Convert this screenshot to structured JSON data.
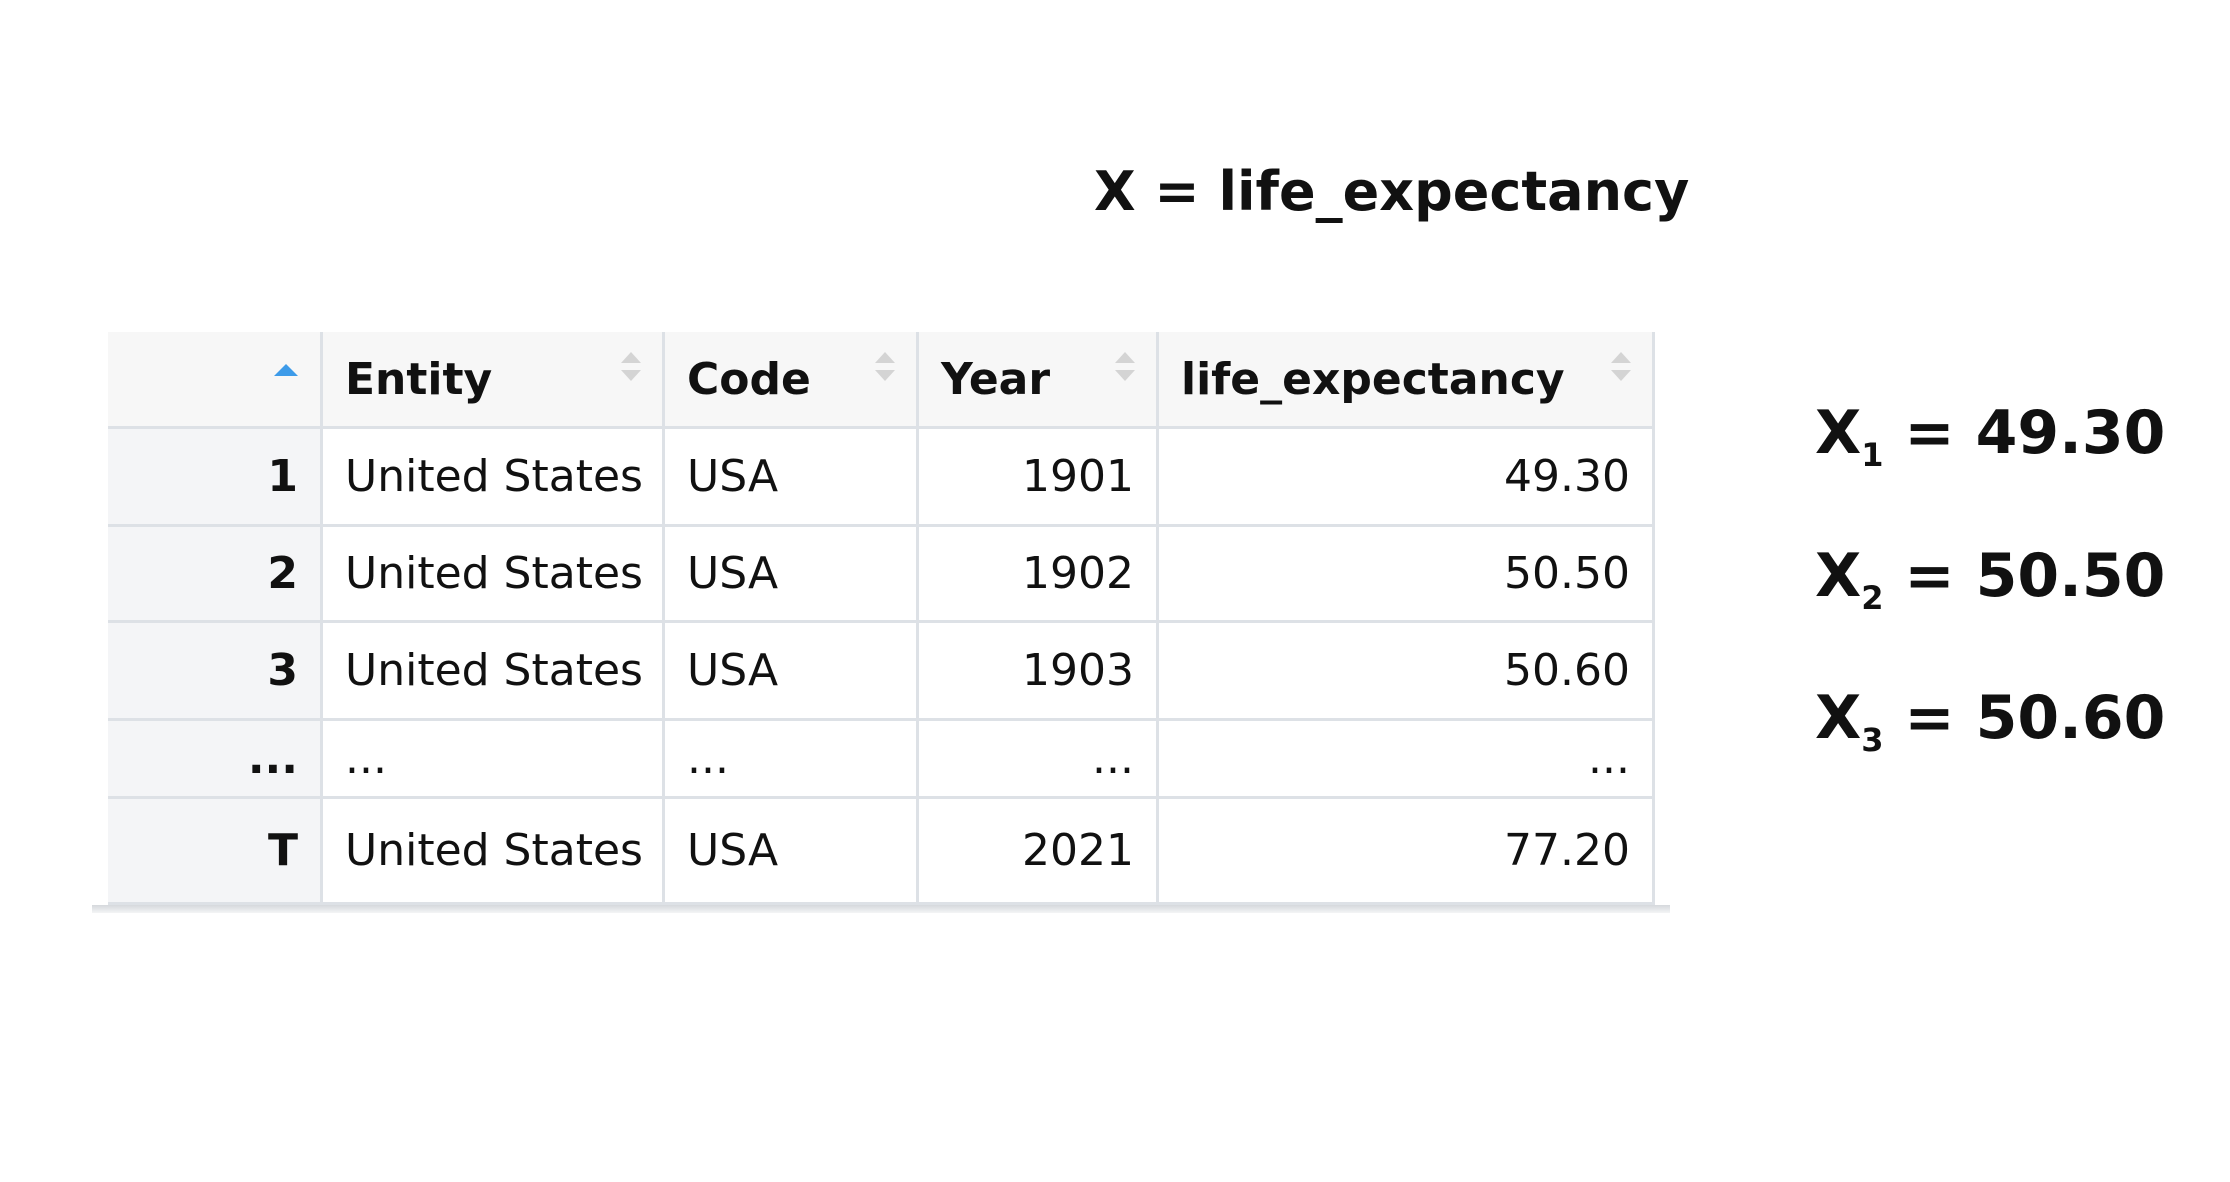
{
  "title": "X = life_expectancy",
  "table": {
    "headers": [
      "Entity",
      "Code",
      "Year",
      "life_expectancy"
    ],
    "rows": [
      [
        "1",
        "United States",
        "USA",
        "1901",
        "49.30"
      ],
      [
        "2",
        "United States",
        "USA",
        "1902",
        "50.50"
      ],
      [
        "3",
        "United States",
        "USA",
        "1903",
        "50.60"
      ],
      [
        "...",
        "...",
        "...",
        "...",
        "..."
      ],
      [
        "T",
        "United States",
        "USA",
        "2021",
        "77.20"
      ]
    ]
  },
  "equations": [
    {
      "base": "X",
      "sub": "1",
      "rest": "= 49.30"
    },
    {
      "base": "X",
      "sub": "2",
      "rest": "= 50.50"
    },
    {
      "base": "X",
      "sub": "3",
      "rest": "= 50.60"
    }
  ]
}
